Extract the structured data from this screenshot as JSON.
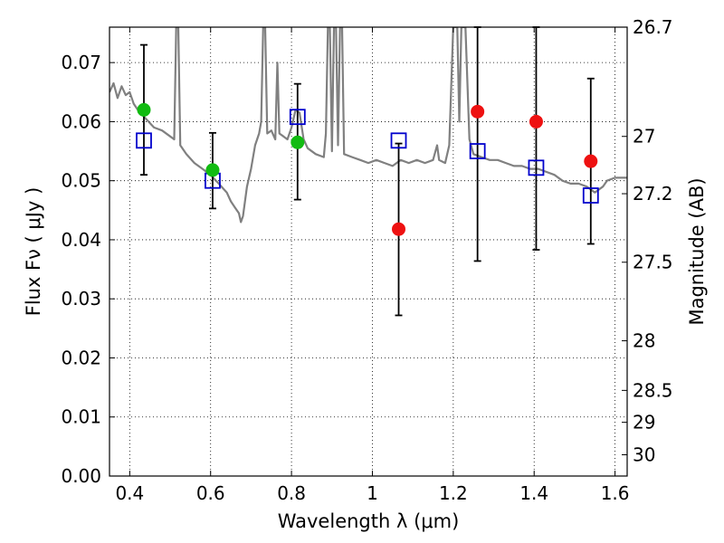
{
  "chart_data": {
    "type": "scatter",
    "xlabel": "Wavelength  λ (μm)",
    "ylabel": "Flux  Fν  ( μJy )",
    "ylabel_right": "Magnitude (AB)",
    "xlim": [
      0.35,
      1.63
    ],
    "ylim": [
      0.0,
      0.076
    ],
    "x_ticks": [
      0.4,
      0.6,
      0.8,
      1.0,
      1.2,
      1.4,
      1.6
    ],
    "x_tick_labels": [
      "0.4",
      "0.6",
      "0.8",
      "1",
      "1.2",
      "1.4",
      "1.6"
    ],
    "y_ticks": [
      0.0,
      0.01,
      0.02,
      0.03,
      0.04,
      0.05,
      0.06,
      0.07
    ],
    "y_tick_labels": [
      "0.00",
      "0.01",
      "0.02",
      "0.03",
      "0.04",
      "0.05",
      "0.06",
      "0.07"
    ],
    "right_ticks": [
      {
        "label": "26.7",
        "flux": 0.076
      },
      {
        "label": "27",
        "flux": 0.0575
      },
      {
        "label": "27.2",
        "flux": 0.0478
      },
      {
        "label": "27.5",
        "flux": 0.0362
      },
      {
        "label": "28",
        "flux": 0.0229
      },
      {
        "label": "28.5",
        "flux": 0.0145
      },
      {
        "label": "29",
        "flux": 0.0091
      },
      {
        "label": "30",
        "flux": 0.0036
      }
    ],
    "grid": true,
    "grid_style": "dotted",
    "series": [
      {
        "role": "model-spectrum",
        "style": "line",
        "color": "#808080",
        "points": [
          [
            0.35,
            0.065
          ],
          [
            0.36,
            0.0665
          ],
          [
            0.37,
            0.064
          ],
          [
            0.38,
            0.066
          ],
          [
            0.39,
            0.0645
          ],
          [
            0.4,
            0.065
          ],
          [
            0.41,
            0.063
          ],
          [
            0.42,
            0.062
          ],
          [
            0.44,
            0.0605
          ],
          [
            0.46,
            0.059
          ],
          [
            0.48,
            0.0585
          ],
          [
            0.5,
            0.0575
          ],
          [
            0.51,
            0.057
          ],
          [
            0.515,
            0.076
          ],
          [
            0.52,
            0.076
          ],
          [
            0.525,
            0.056
          ],
          [
            0.54,
            0.0545
          ],
          [
            0.56,
            0.053
          ],
          [
            0.58,
            0.052
          ],
          [
            0.6,
            0.051
          ],
          [
            0.62,
            0.0495
          ],
          [
            0.64,
            0.048
          ],
          [
            0.65,
            0.0465
          ],
          [
            0.66,
            0.0455
          ],
          [
            0.67,
            0.0445
          ],
          [
            0.675,
            0.043
          ],
          [
            0.68,
            0.044
          ],
          [
            0.69,
            0.049
          ],
          [
            0.7,
            0.052
          ],
          [
            0.71,
            0.056
          ],
          [
            0.72,
            0.058
          ],
          [
            0.725,
            0.06
          ],
          [
            0.73,
            0.076
          ],
          [
            0.735,
            0.076
          ],
          [
            0.74,
            0.058
          ],
          [
            0.75,
            0.0585
          ],
          [
            0.76,
            0.057
          ],
          [
            0.765,
            0.07
          ],
          [
            0.77,
            0.058
          ],
          [
            0.78,
            0.0575
          ],
          [
            0.79,
            0.057
          ],
          [
            0.8,
            0.059
          ],
          [
            0.81,
            0.062
          ],
          [
            0.82,
            0.0615
          ],
          [
            0.83,
            0.057
          ],
          [
            0.84,
            0.0555
          ],
          [
            0.86,
            0.0545
          ],
          [
            0.88,
            0.054
          ],
          [
            0.885,
            0.058
          ],
          [
            0.89,
            0.076
          ],
          [
            0.895,
            0.076
          ],
          [
            0.9,
            0.055
          ],
          [
            0.905,
            0.076
          ],
          [
            0.91,
            0.076
          ],
          [
            0.915,
            0.056
          ],
          [
            0.92,
            0.076
          ],
          [
            0.925,
            0.076
          ],
          [
            0.93,
            0.0545
          ],
          [
            0.95,
            0.054
          ],
          [
            0.97,
            0.0535
          ],
          [
            0.99,
            0.053
          ],
          [
            1.01,
            0.0535
          ],
          [
            1.03,
            0.053
          ],
          [
            1.05,
            0.0525
          ],
          [
            1.07,
            0.0535
          ],
          [
            1.09,
            0.053
          ],
          [
            1.11,
            0.0535
          ],
          [
            1.13,
            0.053
          ],
          [
            1.15,
            0.0535
          ],
          [
            1.16,
            0.056
          ],
          [
            1.165,
            0.0535
          ],
          [
            1.18,
            0.053
          ],
          [
            1.19,
            0.056
          ],
          [
            1.2,
            0.076
          ],
          [
            1.21,
            0.076
          ],
          [
            1.215,
            0.06
          ],
          [
            1.22,
            0.076
          ],
          [
            1.23,
            0.076
          ],
          [
            1.24,
            0.057
          ],
          [
            1.25,
            0.0545
          ],
          [
            1.27,
            0.054
          ],
          [
            1.29,
            0.0535
          ],
          [
            1.31,
            0.0535
          ],
          [
            1.33,
            0.053
          ],
          [
            1.35,
            0.0525
          ],
          [
            1.37,
            0.0525
          ],
          [
            1.39,
            0.052
          ],
          [
            1.41,
            0.052
          ],
          [
            1.43,
            0.0515
          ],
          [
            1.45,
            0.051
          ],
          [
            1.47,
            0.05
          ],
          [
            1.49,
            0.0495
          ],
          [
            1.51,
            0.0495
          ],
          [
            1.53,
            0.049
          ],
          [
            1.55,
            0.048
          ],
          [
            1.57,
            0.049
          ],
          [
            1.58,
            0.05
          ],
          [
            1.6,
            0.0505
          ],
          [
            1.62,
            0.0505
          ],
          [
            1.63,
            0.0505
          ]
        ]
      },
      {
        "role": "model-photometry",
        "style": "open-square",
        "color": "#0000cc",
        "points": [
          [
            0.435,
            0.0568
          ],
          [
            0.605,
            0.05
          ],
          [
            0.815,
            0.0608
          ],
          [
            1.065,
            0.0568
          ],
          [
            1.26,
            0.055
          ],
          [
            1.405,
            0.0522
          ],
          [
            1.54,
            0.0475
          ]
        ]
      },
      {
        "role": "detections",
        "style": "filled-circle",
        "color": "#11bb11",
        "points": [
          {
            "x": 0.435,
            "y": 0.062,
            "ylo": 0.051,
            "yhi": 0.073
          },
          {
            "x": 0.605,
            "y": 0.0518,
            "ylo": 0.0453,
            "yhi": 0.0581
          },
          {
            "x": 0.815,
            "y": 0.0565,
            "ylo": 0.0468,
            "yhi": 0.0664
          }
        ]
      },
      {
        "role": "upper-limits",
        "style": "filled-circle",
        "color": "#ee1111",
        "points": [
          {
            "x": 1.065,
            "y": 0.0418,
            "ylo": 0.0272,
            "yhi": 0.0563
          },
          {
            "x": 1.26,
            "y": 0.0617,
            "ylo": 0.0364,
            "yhi": 0.076
          },
          {
            "x": 1.405,
            "y": 0.06,
            "ylo": 0.0383,
            "yhi": 0.076
          },
          {
            "x": 1.54,
            "y": 0.0533,
            "ylo": 0.0393,
            "yhi": 0.0673
          }
        ]
      }
    ]
  }
}
